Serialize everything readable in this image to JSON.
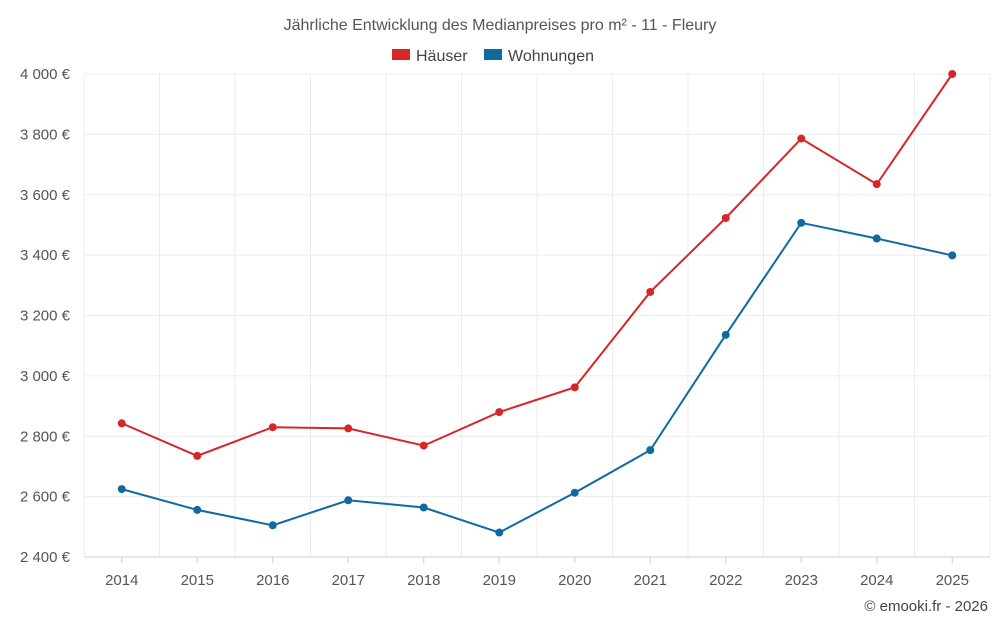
{
  "chart_data": {
    "type": "line",
    "title": "Jährliche Entwicklung des Medianpreises pro m² - 11 - Fleury",
    "x": [
      "2014",
      "2015",
      "2016",
      "2017",
      "2018",
      "2019",
      "2020",
      "2021",
      "2022",
      "2023",
      "2024",
      "2025"
    ],
    "series": [
      {
        "name": "Häuser",
        "color": "#d62728",
        "values": [
          2843,
          2735,
          2830,
          2826,
          2769,
          2880,
          2962,
          3278,
          3523,
          3786,
          3635,
          4000
        ]
      },
      {
        "name": "Wohnungen",
        "color": "#0f6aa0",
        "values": [
          2625,
          2556,
          2505,
          2588,
          2564,
          2481,
          2613,
          2754,
          3136,
          3507,
          3455,
          3399
        ]
      }
    ],
    "y_ticks": [
      "2 400 €",
      "2 600 €",
      "2 800 €",
      "3 000 €",
      "3 200 €",
      "3 400 €",
      "3 600 €",
      "3 800 €",
      "4 000 €"
    ],
    "ylim": [
      2400,
      4000
    ],
    "grid": true,
    "legend_position": "top-center"
  },
  "credit": "© emooki.fr - 2026"
}
